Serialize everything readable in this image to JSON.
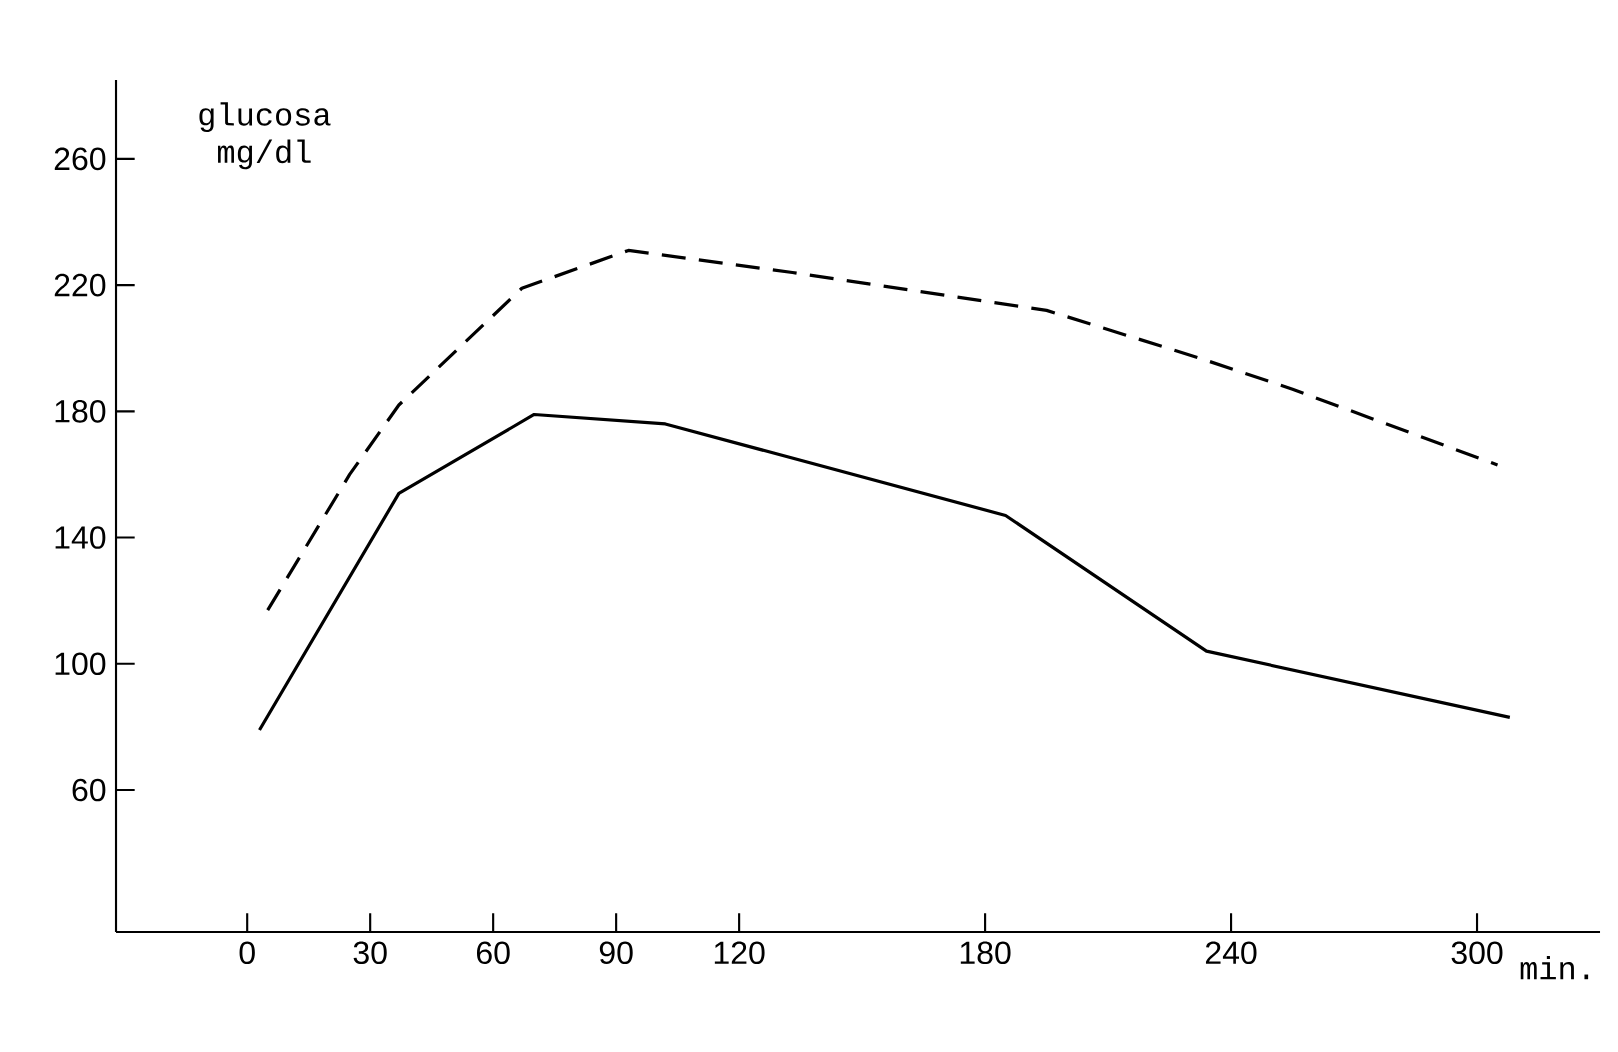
{
  "chart_data": {
    "type": "line",
    "xlabel": "min.",
    "ylabel": "glucosa mg/dl",
    "xlim": [
      -32,
      330
    ],
    "ylim": [
      15,
      285
    ],
    "xticks": [
      0,
      30,
      60,
      90,
      120,
      180,
      240,
      300
    ],
    "yticks": [
      60,
      100,
      140,
      180,
      220,
      260
    ],
    "grid": false,
    "marker": "none",
    "series": [
      {
        "color": "#000000",
        "line_style": "solid",
        "x": [
          3,
          37,
          70,
          102,
          185,
          234,
          308
        ],
        "values": [
          79,
          154,
          179,
          176,
          147,
          104,
          83
        ]
      },
      {
        "color": "#000000",
        "line_style": "dashed",
        "x": [
          5,
          25,
          37,
          67,
          93,
          133,
          195,
          232,
          255,
          305
        ],
        "values": [
          117,
          160,
          182,
          219,
          231,
          224,
          212,
          197,
          187,
          163
        ]
      }
    ]
  }
}
